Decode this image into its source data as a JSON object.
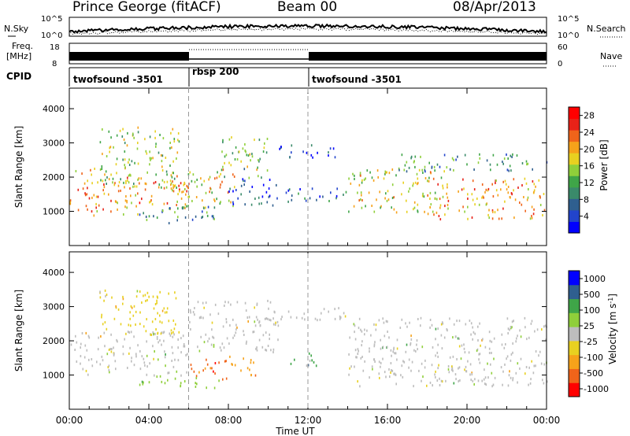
{
  "header": {
    "station": "Prince George (fitACF)",
    "beam": "Beam 00",
    "date": "08/Apr/2013"
  },
  "noise_panel": {
    "left_label": "N.Sky",
    "right_label": "N.Search",
    "left_ticks": [
      "10^5",
      "10^0"
    ],
    "right_ticks": [
      "10^5",
      "10^0"
    ]
  },
  "freq_panel": {
    "left_label_1": "Freq.",
    "left_label_2": "[MHz]",
    "right_label": "Nave",
    "left_ticks": [
      "18",
      "8"
    ],
    "right_ticks": [
      "60",
      "0"
    ]
  },
  "cpid_panel": {
    "label": "CPID",
    "segments": [
      {
        "name": "twofsound -3501",
        "start_h": 0,
        "end_h": 6
      },
      {
        "name": "rbsp 200",
        "start_h": 6,
        "end_h": 12
      },
      {
        "name": "twofsound -3501",
        "start_h": 12,
        "end_h": 24
      }
    ]
  },
  "x_axis": {
    "label": "Time UT",
    "range_h": [
      0,
      24
    ],
    "tick_labels": [
      "00:00",
      "04:00",
      "08:00",
      "12:00",
      "16:00",
      "20:00",
      "00:00"
    ]
  },
  "chart_data": [
    {
      "type": "heatmap",
      "quantity": "Power",
      "ylabel": "Slant Range [km]",
      "ylim": [
        0,
        4600
      ],
      "y_ticks": [
        1000,
        2000,
        3000,
        4000
      ],
      "colorbar_label": "Power [dB]",
      "colorbar_ticks": [
        "4",
        "8",
        "12",
        "16",
        "20",
        "24",
        "28"
      ],
      "colorbar_range": [
        0,
        30
      ],
      "colorbar_colors": [
        "#0000ff",
        "#2244cc",
        "#2f5f8f",
        "#3a8a6a",
        "#3fa548",
        "#8fcf3a",
        "#e8d020",
        "#f6a21a",
        "#f0641a",
        "#e82218",
        "#ff0000"
      ],
      "scatter_regions": [
        {
          "t": [
            0.0,
            3.5
          ],
          "r": [
            900,
            2300
          ],
          "center": 20
        },
        {
          "t": [
            3.5,
            6.0
          ],
          "r": [
            1200,
            2000
          ],
          "center": 22
        },
        {
          "t": [
            1.5,
            5.5
          ],
          "r": [
            1700,
            3500
          ],
          "center": 15
        },
        {
          "t": [
            5.0,
            8.5
          ],
          "r": [
            1100,
            2300
          ],
          "center": 18
        },
        {
          "t": [
            7.5,
            10.0
          ],
          "r": [
            2000,
            3200
          ],
          "center": 14
        },
        {
          "t": [
            3.5,
            7.5
          ],
          "r": [
            650,
            1200
          ],
          "center": 10
        },
        {
          "t": [
            8.0,
            10.5
          ],
          "r": [
            1200,
            2000
          ],
          "center": 5
        },
        {
          "t": [
            10.5,
            13.5
          ],
          "r": [
            2600,
            3000
          ],
          "center": 5
        },
        {
          "t": [
            10.5,
            14.0
          ],
          "r": [
            1300,
            1700
          ],
          "center": 6
        },
        {
          "t": [
            14.0,
            19.0
          ],
          "r": [
            1000,
            2300
          ],
          "center": 17
        },
        {
          "t": [
            18.0,
            24.0
          ],
          "r": [
            800,
            2000
          ],
          "center": 21
        },
        {
          "t": [
            16.5,
            24.0
          ],
          "r": [
            2200,
            2700
          ],
          "center": 10
        }
      ]
    },
    {
      "type": "heatmap",
      "quantity": "Velocity",
      "ylabel": "Slant Range [km]",
      "ylim": [
        0,
        4600
      ],
      "y_ticks": [
        1000,
        2000,
        3000,
        4000
      ],
      "colorbar_label": "Velocity [m s^-1]",
      "colorbar_ticks": [
        "1000",
        "500",
        "100",
        "25",
        "-25",
        "-100",
        "-500",
        "-1000"
      ],
      "colorbar_range": [
        -1000,
        1000
      ],
      "colorbar_colors": [
        "#ff0000",
        "#f0641a",
        "#f6a21a",
        "#e8d020",
        "#bdbdbd",
        "#8fcf3a",
        "#3fa548",
        "#2f5f8f",
        "#0000ff"
      ],
      "scatter_regions": [
        {
          "t": [
            0.0,
            6.0
          ],
          "r": [
            1000,
            2300
          ],
          "center": 0
        },
        {
          "t": [
            6.0,
            10.5
          ],
          "r": [
            1700,
            3200
          ],
          "center": 0
        },
        {
          "t": [
            10.5,
            14.0
          ],
          "r": [
            2600,
            3000
          ],
          "center": 0
        },
        {
          "t": [
            14.0,
            24.0
          ],
          "r": [
            700,
            2700
          ],
          "center": 0
        },
        {
          "t": [
            1.5,
            5.5
          ],
          "r": [
            2200,
            3500
          ],
          "center": -150
        },
        {
          "t": [
            6.0,
            8.0
          ],
          "r": [
            900,
            1500
          ],
          "center": -700
        },
        {
          "t": [
            8.0,
            9.5
          ],
          "r": [
            1000,
            1600
          ],
          "center": -400
        },
        {
          "t": [
            3.5,
            7.5
          ],
          "r": [
            650,
            1000
          ],
          "center": 200
        },
        {
          "t": [
            11.0,
            12.5
          ],
          "r": [
            1300,
            1700
          ],
          "center": 400
        }
      ]
    }
  ]
}
